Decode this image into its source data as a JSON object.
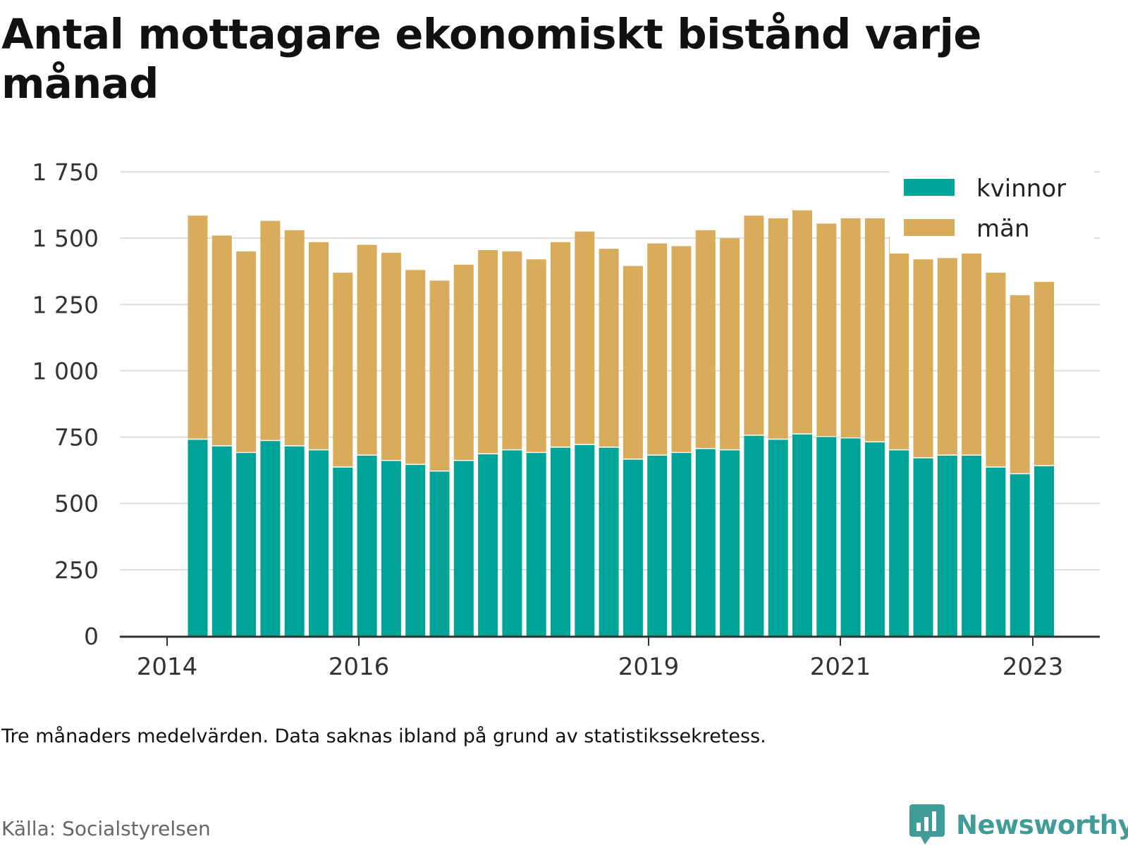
{
  "title": "Antal mottagare ekonomiskt bistånd varje månad",
  "note": "Tre månaders medelvärden. Data saknas ibland på grund av statistikssekretess.",
  "source": "Källa: Socialstyrelsen",
  "brand": "Newsworthy",
  "colors": {
    "kvinnor": "#00a398",
    "man": "#d9ac5b",
    "grid": "#dddddd",
    "axis": "#333333",
    "brand": "#3f9c97"
  },
  "chart_data": {
    "type": "bar",
    "stacked": true,
    "ylim": [
      0,
      1750
    ],
    "yticks": [
      0,
      250,
      500,
      750,
      1000,
      1250,
      1500,
      1750
    ],
    "ytick_labels": [
      "0",
      "250",
      "500",
      "750",
      "1 000",
      "1 250",
      "1 500",
      "1 750"
    ],
    "xtick_labels": [
      "2014",
      "2016",
      "2019",
      "2021",
      "2023"
    ],
    "grid": true,
    "legend_position": "top-right",
    "series": [
      {
        "name": "kvinnor",
        "color": "#00a398",
        "values": [
          740,
          715,
          690,
          735,
          715,
          700,
          635,
          680,
          660,
          645,
          620,
          660,
          685,
          700,
          690,
          710,
          720,
          710,
          665,
          680,
          690,
          705,
          700,
          755,
          740,
          760,
          750,
          745,
          730,
          700,
          670,
          680,
          680,
          635,
          610,
          640
        ]
      },
      {
        "name": "män",
        "color": "#d9ac5b",
        "values": [
          845,
          795,
          760,
          830,
          815,
          785,
          735,
          795,
          785,
          735,
          720,
          740,
          770,
          750,
          730,
          775,
          805,
          750,
          730,
          800,
          780,
          825,
          800,
          830,
          835,
          845,
          805,
          830,
          845,
          805,
          750,
          745,
          765,
          735,
          675,
          695
        ]
      }
    ]
  }
}
